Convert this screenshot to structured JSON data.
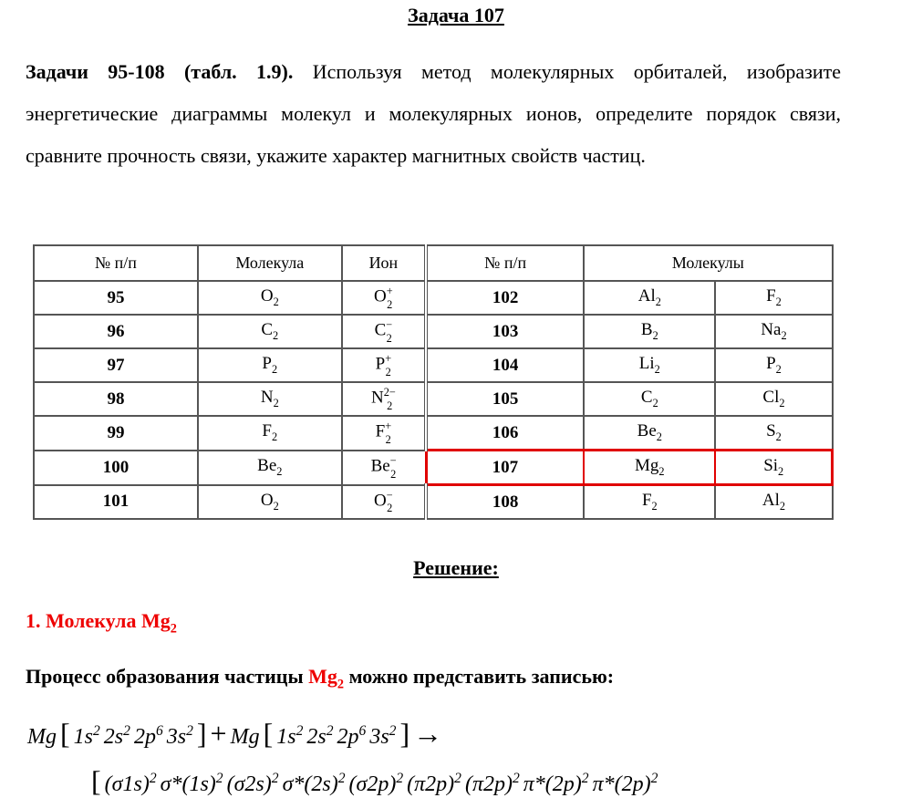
{
  "header": {
    "title": "Задача 107"
  },
  "task": {
    "label": "Задачи 95-108 (табл. 1.9).",
    "text": "Используя метод молекулярных орбиталей, изобразите энергетические диаграммы молекул и молекулярных ионов, определите порядок связи, сравните прочность связи, укажите характер магнитных свойств частиц."
  },
  "table": {
    "headers": [
      "№ п/п",
      "Молекула",
      "Ион",
      "№ п/п",
      "Молекулы"
    ],
    "rows": [
      [
        "95",
        {
          "b": "O",
          "sub": "2"
        },
        {
          "b": "O",
          "sub": "2",
          "sup": "+"
        },
        "102",
        {
          "b": "Al",
          "sub": "2"
        },
        {
          "b": "F",
          "sub": "2"
        }
      ],
      [
        "96",
        {
          "b": "C",
          "sub": "2"
        },
        {
          "b": "C",
          "sub": "2",
          "sup": "−"
        },
        "103",
        {
          "b": "B",
          "sub": "2"
        },
        {
          "b": "Na",
          "sub": "2"
        }
      ],
      [
        "97",
        {
          "b": "P",
          "sub": "2"
        },
        {
          "b": "P",
          "sub": "2",
          "sup": "+"
        },
        "104",
        {
          "b": "Li",
          "sub": "2"
        },
        {
          "b": "P",
          "sub": "2"
        }
      ],
      [
        "98",
        {
          "b": "N",
          "sub": "2"
        },
        {
          "b": "N",
          "sub": "2",
          "sup": "2−"
        },
        "105",
        {
          "b": "C",
          "sub": "2"
        },
        {
          "b": "Cl",
          "sub": "2"
        }
      ],
      [
        "99",
        {
          "b": "F",
          "sub": "2"
        },
        {
          "b": "F",
          "sub": "2",
          "sup": "+"
        },
        "106",
        {
          "b": "Be",
          "sub": "2"
        },
        {
          "b": "S",
          "sub": "2"
        }
      ],
      [
        "100",
        {
          "b": "Be",
          "sub": "2"
        },
        {
          "b": "Be",
          "sub": "2",
          "sup": "−"
        },
        "107",
        {
          "b": "Mg",
          "sub": "2"
        },
        {
          "b": "Si",
          "sub": "2"
        }
      ],
      [
        "101",
        {
          "b": "O",
          "sub": "2"
        },
        {
          "b": "O",
          "sub": "2",
          "sup": "−"
        },
        "108",
        {
          "b": "F",
          "sub": "2"
        },
        {
          "b": "Al",
          "sub": "2"
        }
      ]
    ],
    "highlight": {
      "row": 5,
      "color": "#e00000"
    }
  },
  "solution": {
    "title": "Решение:",
    "molecule": {
      "text": "1. Молекула ",
      "formula": {
        "b": "Mg",
        "sub": "2"
      }
    },
    "process": {
      "before": "Процесс образования частицы ",
      "formula": {
        "b": "Mg",
        "sub": "2"
      },
      "after": " можно представить записью:"
    },
    "equation": {
      "line1": [
        {
          "text": "Mg"
        },
        {
          "text": "["
        },
        {
          "text": "1s",
          "sup": "2"
        },
        {
          "text": "2s",
          "sup": "2"
        },
        {
          "text": "2p",
          "sup": "6"
        },
        {
          "text": "3s",
          "sup": "2"
        },
        {
          "text": "]"
        },
        {
          "text": "+"
        },
        {
          "text": "Mg"
        },
        {
          "text": "["
        },
        {
          "text": "1s",
          "sup": "2"
        },
        {
          "text": "2s",
          "sup": "2"
        },
        {
          "text": "2p",
          "sup": "6"
        },
        {
          "text": "3s",
          "sup": "2"
        },
        {
          "text": "]"
        },
        {
          "text": "→"
        }
      ],
      "line2": [
        {
          "text": "["
        },
        {
          "text": "(σ1s)",
          "sup": "2"
        },
        {
          "text": "σ*(1s)",
          "sup": "2"
        },
        {
          "text": "(σ2s)",
          "sup": "2"
        },
        {
          "text": "σ*(2s)",
          "sup": "2"
        },
        {
          "text": "(σ2p)",
          "sup": "2"
        },
        {
          "text": "(π2p)",
          "sup": "2"
        },
        {
          "text": "(π2p)",
          "sup": "2"
        },
        {
          "text": "π*(2p)",
          "sup": "2"
        },
        {
          "text": "π*(2p)",
          "sup": "2"
        }
      ]
    }
  }
}
